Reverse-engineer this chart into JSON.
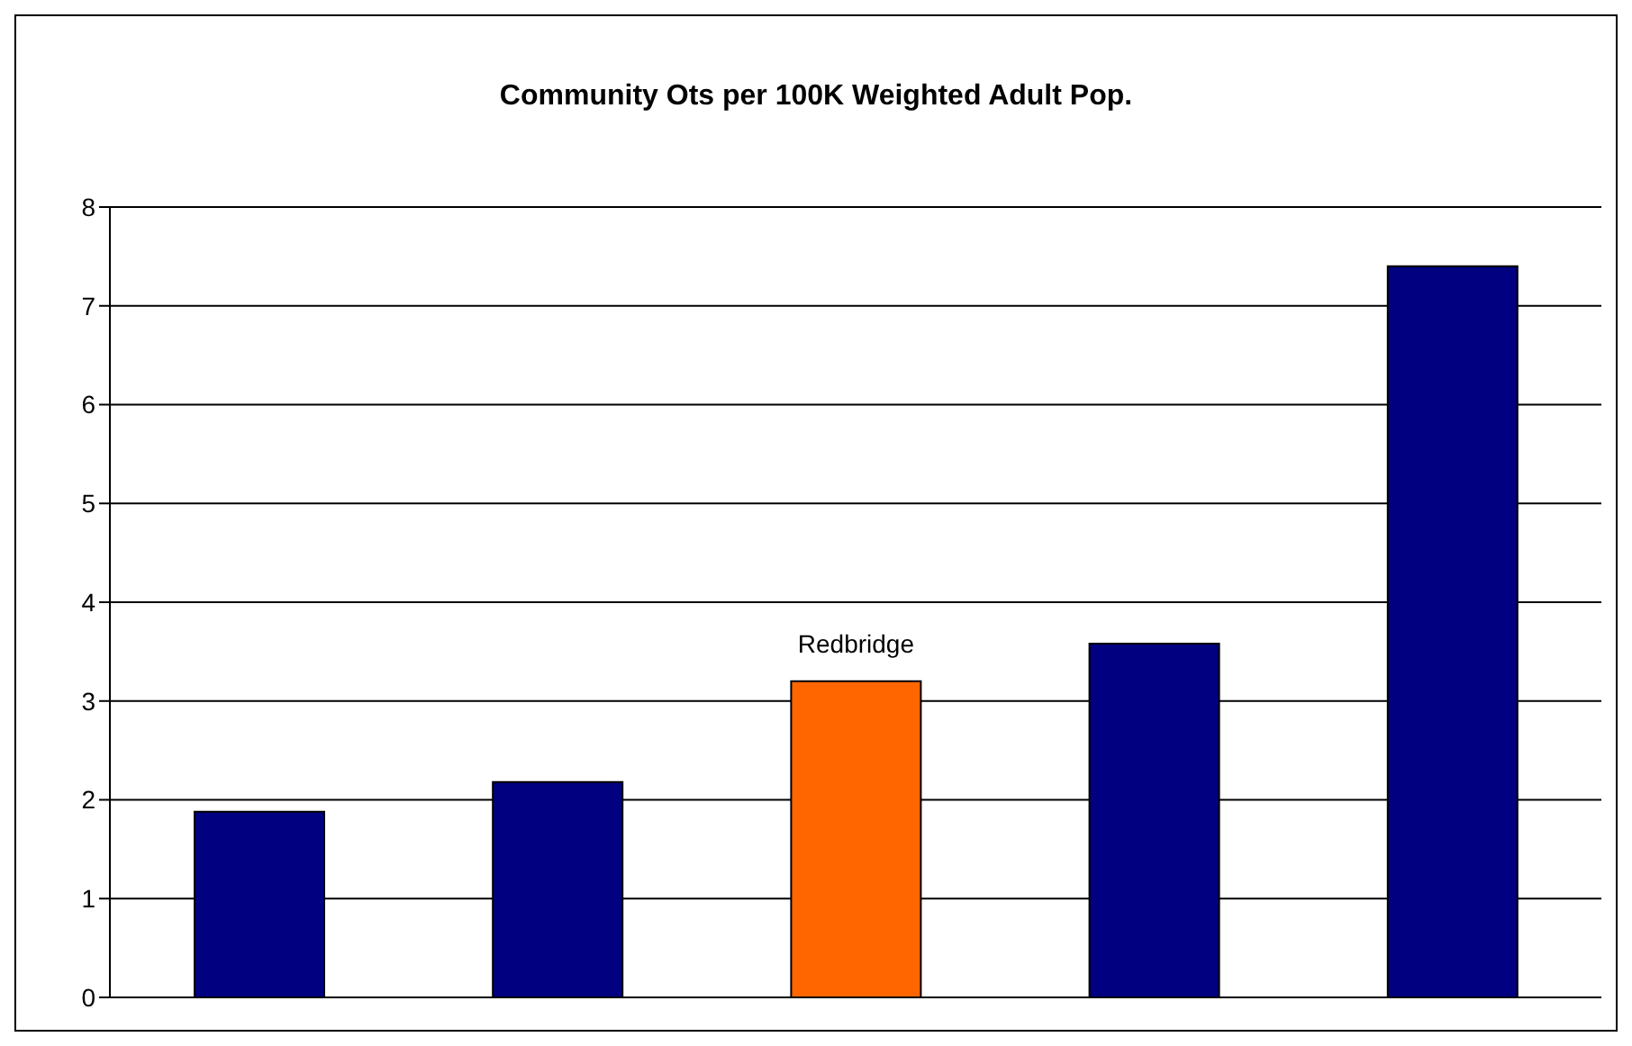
{
  "chart_data": {
    "type": "bar",
    "title": "Community Ots per 100K Weighted Adult Pop.",
    "categories": [
      null,
      null,
      null,
      null,
      null
    ],
    "values": [
      1.88,
      2.18,
      3.2,
      3.58,
      7.4
    ],
    "colors": [
      "#000080",
      "#000080",
      "#ff6600",
      "#000080",
      "#000080"
    ],
    "ylim": [
      0,
      8
    ],
    "yticks": [
      0,
      1,
      2,
      3,
      4,
      5,
      6,
      7,
      8
    ],
    "grid": "y",
    "annotations": [
      {
        "text": "Redbridge",
        "y": 3.2
      }
    ]
  }
}
